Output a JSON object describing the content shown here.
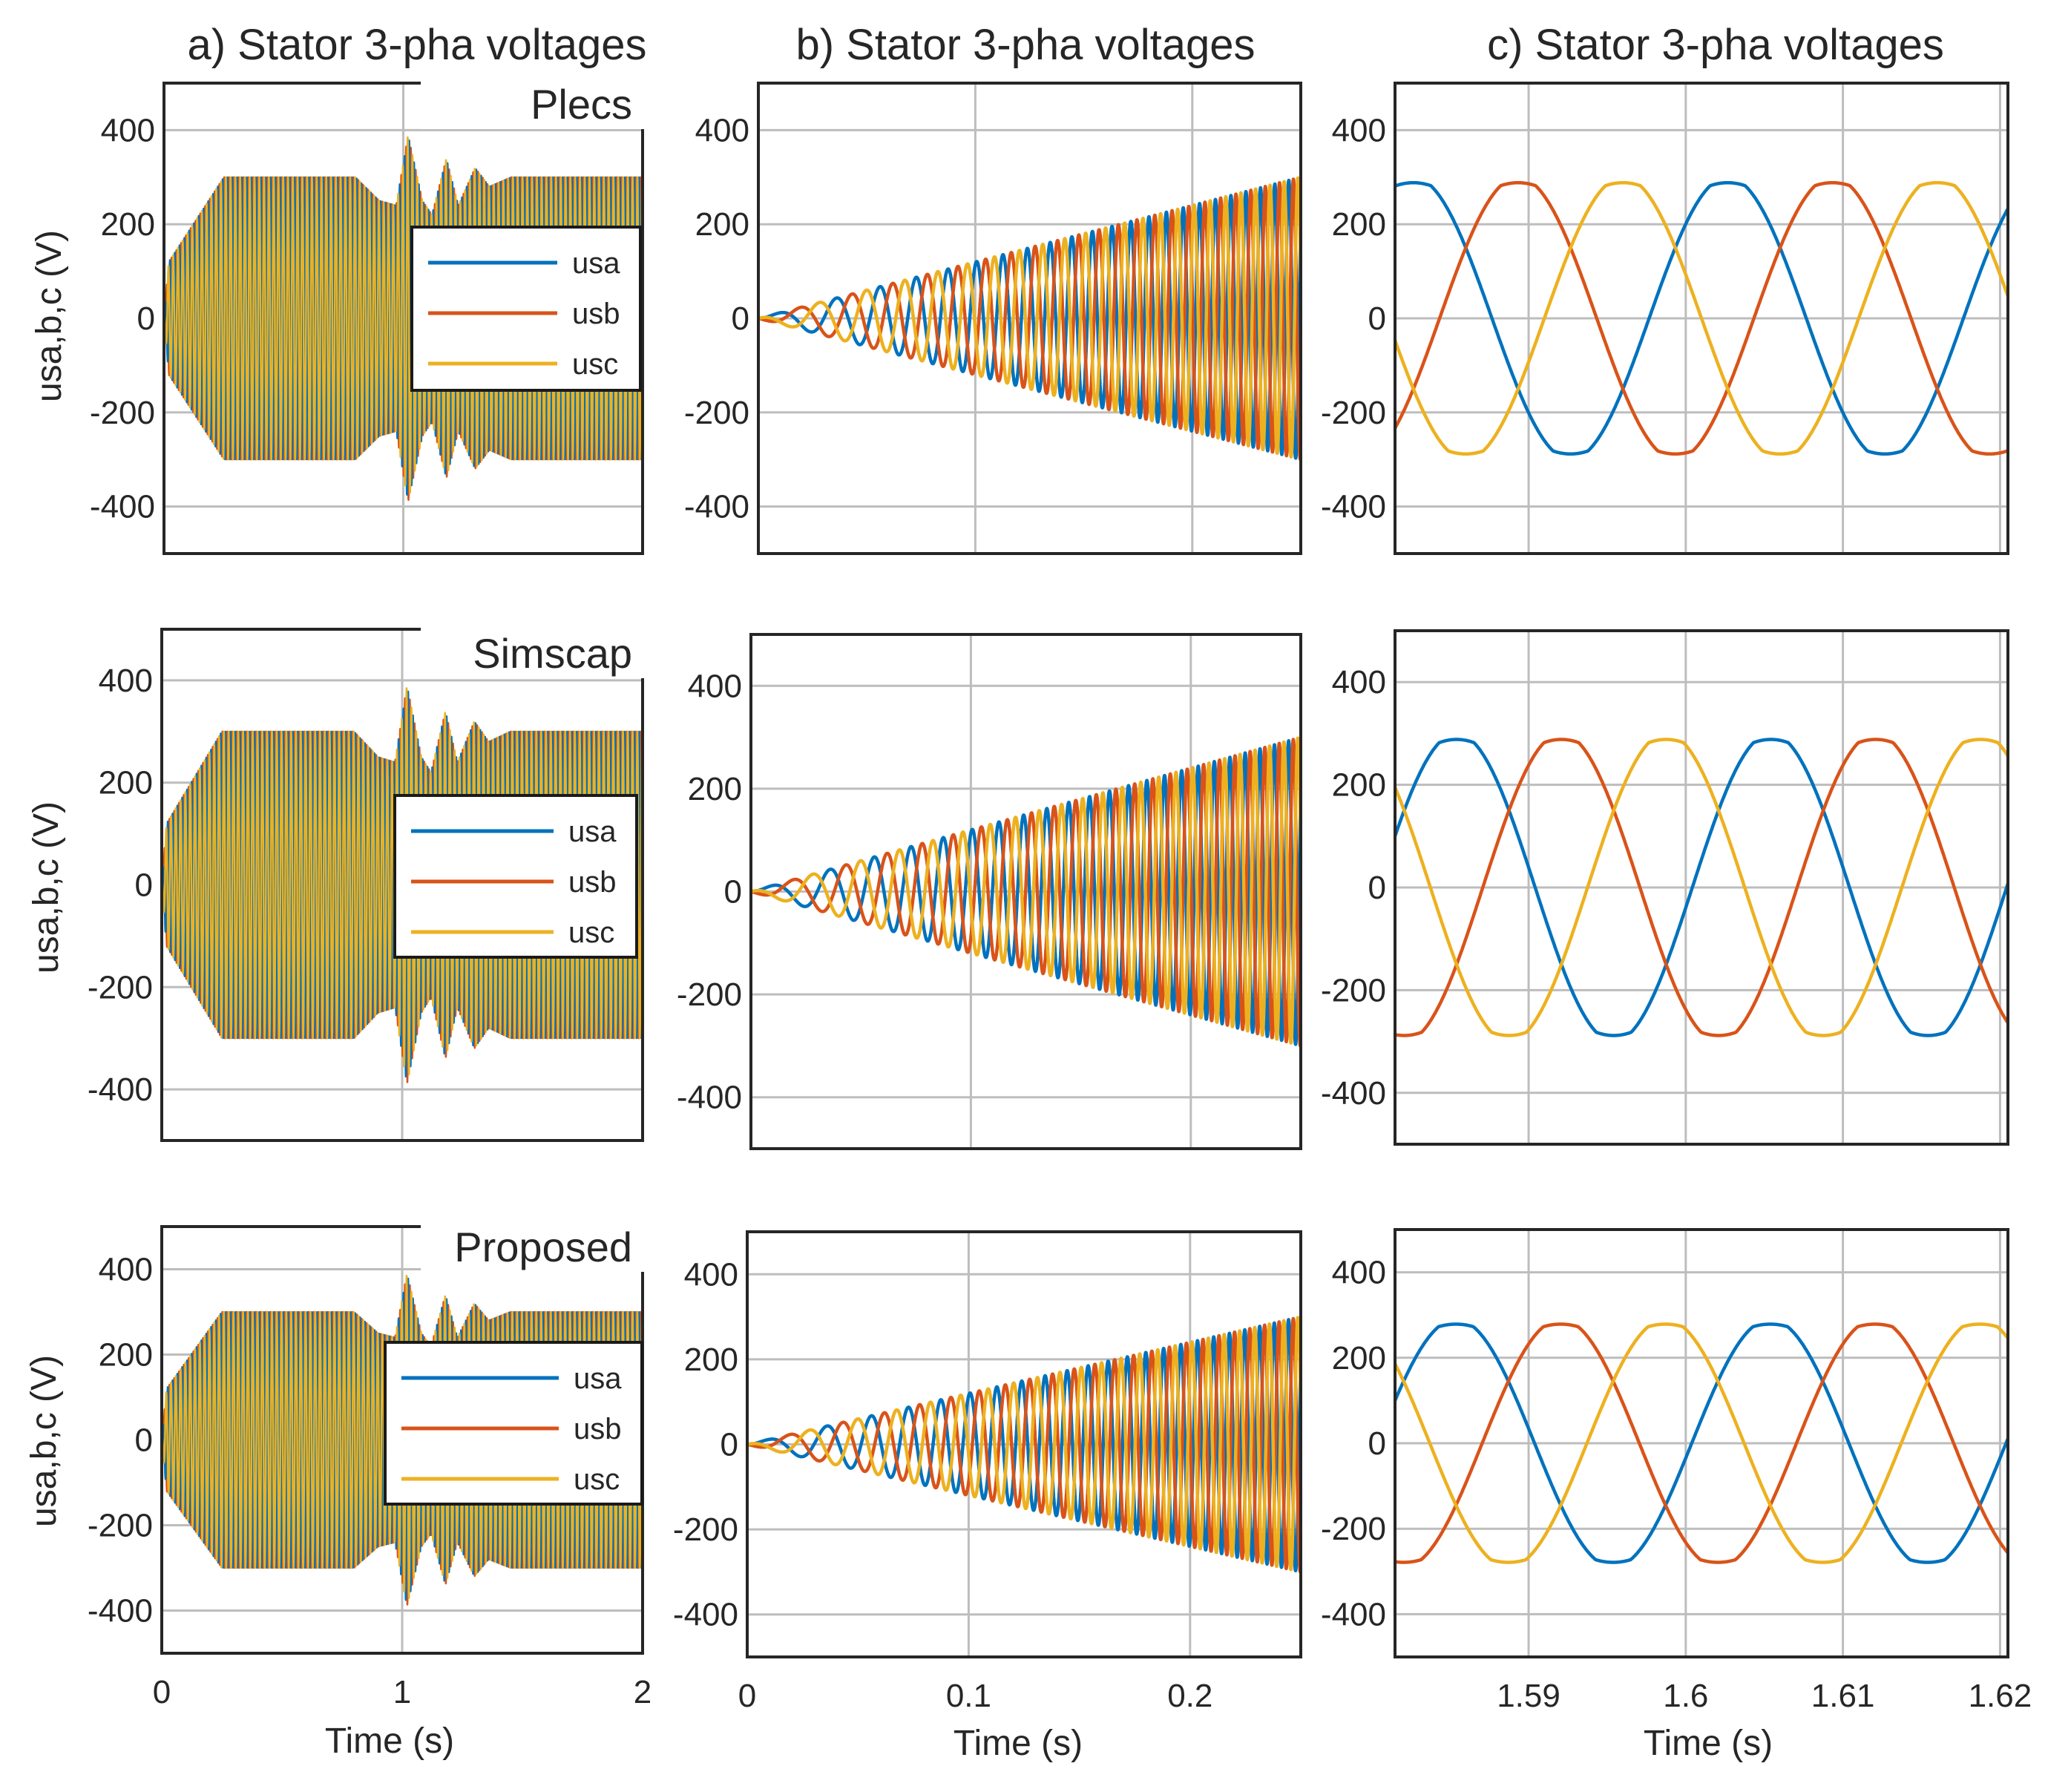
{
  "figure": {
    "column_titles": [
      "a) Stator 3-pha voltages",
      "b) Stator 3-pha voltages",
      "c) Stator 3-pha voltages"
    ],
    "ylabel": "usa,b,c (V)",
    "xlabel": "Time (s)",
    "row_tags": [
      "Plecs",
      "Simscap",
      "Proposed"
    ]
  },
  "colors": {
    "usa": "#0072BD",
    "usb": "#D95319",
    "usc": "#EDB120",
    "grid": "#bdbdbd",
    "axis": "#262626"
  },
  "chart_data": [
    {
      "type": "line",
      "panel": "a",
      "model": "Plecs",
      "title": "a) Stator 3-pha voltages",
      "xlabel": "",
      "ylabel": "usa,b,c (V)",
      "xlim": [
        0,
        2
      ],
      "ylim": [
        -500,
        500
      ],
      "xticks": [
        0,
        1,
        2
      ],
      "yticks": [
        -400,
        -200,
        0,
        200,
        400
      ],
      "grid": true,
      "legend": {
        "position": "right",
        "entries": [
          "usa",
          "usb",
          "usc"
        ]
      },
      "series": [
        {
          "name": "usa",
          "description": "50 Hz, amplitude ramps 0-300 V during 0-0.25 s, steady 300 V, dip to ~250 V near 0.85 s, transient peak ~390 V at 1.02 s decaying to 300 V by ~1.3 s"
        },
        {
          "name": "usb",
          "description": "same envelope, phase -120 deg"
        },
        {
          "name": "usc",
          "description": "same envelope, phase +120 deg"
        }
      ],
      "envelope": {
        "t": [
          0,
          0.02,
          0.25,
          0.8,
          0.9,
          0.97,
          1.02,
          1.08,
          1.12,
          1.18,
          1.23,
          1.3,
          1.36,
          1.45,
          2.0
        ],
        "amp": [
          0,
          120,
          300,
          300,
          250,
          240,
          390,
          250,
          220,
          340,
          240,
          320,
          280,
          300,
          300
        ]
      }
    },
    {
      "type": "line",
      "panel": "b",
      "model": "Plecs",
      "title": "b) Stator 3-pha voltages",
      "xlim": [
        0,
        0.25
      ],
      "ylim": [
        -500,
        500
      ],
      "xticks": [
        0,
        0.1,
        0.2
      ],
      "yticks": [
        -400,
        -200,
        0,
        200,
        400
      ],
      "grid": true,
      "series": [
        {
          "name": "usa"
        },
        {
          "name": "usb"
        },
        {
          "name": "usc"
        }
      ],
      "signal": {
        "amplitude_start": 0,
        "amplitude_end": 300,
        "f_start_hz": 25,
        "f_end_hz": 160
      }
    },
    {
      "type": "line",
      "panel": "c",
      "model": "Plecs",
      "title": "c) Stator 3-pha voltages",
      "xlim": [
        1.5815,
        1.6205
      ],
      "ylim": [
        -500,
        500
      ],
      "xticks": [
        1.59,
        1.6,
        1.61,
        1.62
      ],
      "yticks": [
        -400,
        -200,
        0,
        200,
        400
      ],
      "grid": true,
      "series": [
        {
          "name": "usa"
        },
        {
          "name": "usb"
        },
        {
          "name": "usc"
        }
      ],
      "signal": {
        "amplitude": 300,
        "frequency_hz": 50,
        "usa_value_at_start": 280,
        "usb_value_at_start": -220,
        "usc_value_at_start": -60
      }
    },
    {
      "type": "line",
      "panel": "a",
      "model": "Simscap",
      "xlabel": "",
      "ylabel": "usa,b,c (V)",
      "xlim": [
        0,
        2
      ],
      "ylim": [
        -500,
        500
      ],
      "xticks": [
        0,
        1,
        2
      ],
      "yticks": [
        -400,
        -200,
        0,
        200,
        400
      ],
      "grid": true,
      "legend": {
        "position": "right",
        "entries": [
          "usa",
          "usb",
          "usc"
        ]
      },
      "series": [
        {
          "name": "usa"
        },
        {
          "name": "usb"
        },
        {
          "name": "usc"
        }
      ],
      "envelope": {
        "t": [
          0,
          0.02,
          0.25,
          0.8,
          0.9,
          0.97,
          1.02,
          1.08,
          1.12,
          1.18,
          1.23,
          1.3,
          1.36,
          1.45,
          2.0
        ],
        "amp": [
          0,
          120,
          300,
          300,
          250,
          240,
          390,
          250,
          220,
          340,
          240,
          320,
          280,
          300,
          300
        ]
      }
    },
    {
      "type": "line",
      "panel": "b",
      "model": "Simscap",
      "xlim": [
        0,
        0.25
      ],
      "ylim": [
        -500,
        500
      ],
      "xticks": [
        0,
        0.1,
        0.2
      ],
      "yticks": [
        -400,
        -200,
        0,
        200,
        400
      ],
      "grid": true,
      "series": [
        {
          "name": "usa"
        },
        {
          "name": "usb"
        },
        {
          "name": "usc"
        }
      ],
      "signal": {
        "amplitude_start": 0,
        "amplitude_end": 300,
        "f_start_hz": 25,
        "f_end_hz": 160
      }
    },
    {
      "type": "line",
      "panel": "c",
      "model": "Simscap",
      "xlim": [
        1.5815,
        1.6205
      ],
      "ylim": [
        -500,
        500
      ],
      "xticks": [
        1.59,
        1.6,
        1.61,
        1.62
      ],
      "yticks": [
        -400,
        -200,
        0,
        200,
        400
      ],
      "grid": true,
      "series": [
        {
          "name": "usa"
        },
        {
          "name": "usb"
        },
        {
          "name": "usc"
        }
      ],
      "signal": {
        "amplitude": 300,
        "frequency_hz": 50,
        "usa_value_at_start": 100,
        "usb_value_at_start": -290,
        "usc_value_at_start": 190
      }
    },
    {
      "type": "line",
      "panel": "a",
      "model": "Proposed",
      "xlabel": "Time (s)",
      "ylabel": "usa,b,c (V)",
      "xlim": [
        0,
        2
      ],
      "ylim": [
        -500,
        500
      ],
      "xticks": [
        0,
        1,
        2
      ],
      "yticks": [
        -400,
        -200,
        0,
        200,
        400
      ],
      "grid": true,
      "legend": {
        "position": "right",
        "entries": [
          "usa",
          "usb",
          "usc"
        ]
      },
      "series": [
        {
          "name": "usa"
        },
        {
          "name": "usb"
        },
        {
          "name": "usc"
        }
      ],
      "envelope": {
        "t": [
          0,
          0.02,
          0.25,
          0.8,
          0.9,
          0.97,
          1.02,
          1.08,
          1.12,
          1.18,
          1.23,
          1.3,
          1.36,
          1.45,
          2.0
        ],
        "amp": [
          0,
          120,
          300,
          300,
          250,
          240,
          390,
          250,
          220,
          340,
          240,
          320,
          280,
          300,
          300
        ]
      }
    },
    {
      "type": "line",
      "panel": "b",
      "model": "Proposed",
      "xlabel": "Time (s)",
      "xlim": [
        0,
        0.25
      ],
      "ylim": [
        -500,
        500
      ],
      "xticks": [
        0,
        0.1,
        0.2
      ],
      "yticks": [
        -400,
        -200,
        0,
        200,
        400
      ],
      "grid": true,
      "series": [
        {
          "name": "usa"
        },
        {
          "name": "usb"
        },
        {
          "name": "usc"
        }
      ],
      "signal": {
        "amplitude_start": 0,
        "amplitude_end": 300,
        "f_start_hz": 25,
        "f_end_hz": 160
      }
    },
    {
      "type": "line",
      "panel": "c",
      "model": "Proposed",
      "xlabel": "Time (s)",
      "xlim": [
        1.5815,
        1.6205
      ],
      "ylim": [
        -500,
        500
      ],
      "xticks": [
        1.59,
        1.6,
        1.61,
        1.62
      ],
      "yticks": [
        -400,
        -200,
        0,
        200,
        400
      ],
      "grid": true,
      "series": [
        {
          "name": "usa"
        },
        {
          "name": "usb"
        },
        {
          "name": "usc"
        }
      ],
      "signal": {
        "amplitude": 290,
        "frequency_hz": 50,
        "usa_value_at_start": 100,
        "usb_value_at_start": -285,
        "usc_value_at_start": 185
      }
    }
  ]
}
